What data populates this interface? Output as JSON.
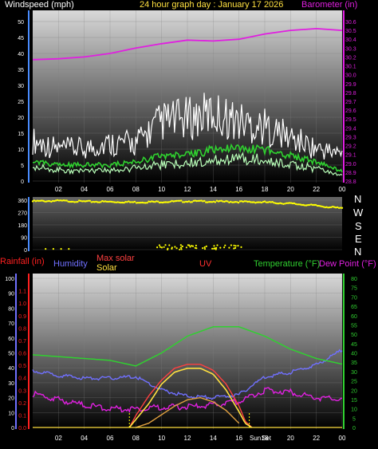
{
  "header": {
    "left": "Windspeed (mph)",
    "center": "24 hour graph day : January 17 2026",
    "right": "Barometer (in)"
  },
  "colors": {
    "wind_avg": "#2fd02f",
    "wind_gust": "#ffffff",
    "wind_light": "#b8ffb8",
    "barometer": "#e01fe0",
    "direction": "#ffff00",
    "rainfall": "#ff2020",
    "humidity": "#7070ff",
    "max_solar": "#ff4040",
    "solar": "#ffe040",
    "uv": "#ff3030",
    "temperature": "#30d030",
    "dewpoint": "#e020e0",
    "sun_marker": "#ffff00",
    "axis": "#4a8cff"
  },
  "direction_labels": [
    "N",
    "W",
    "S",
    "E",
    "N"
  ],
  "bottom_legend": {
    "rainfall": "Rainfall (in)",
    "humidity": "Humidity",
    "max_solar": "Max solar",
    "solar": "Solar",
    "uv": "UV",
    "temperature": "Temperature (°F)",
    "dewpoint": "Dew Point (°F)"
  },
  "sun_labels": {
    "rise": "Sun",
    "set": "Set"
  },
  "chart_data": [
    {
      "type": "line",
      "name": "wind-barometer",
      "x_ticks": [
        "02",
        "04",
        "06",
        "08",
        "10",
        "12",
        "14",
        "16",
        "18",
        "20",
        "22",
        "00"
      ],
      "left_axis": {
        "ticks": [
          0,
          5,
          10,
          15,
          20,
          25,
          30,
          35,
          40,
          45,
          50
        ],
        "ylim": [
          0,
          50
        ]
      },
      "right_axis": {
        "ticks": [
          28.8,
          28.9,
          29.0,
          29.1,
          29.2,
          29.3,
          29.4,
          29.5,
          29.6,
          29.7,
          29.8,
          29.9,
          30.0,
          30.1,
          30.2,
          30.3,
          30.4,
          30.5,
          30.6
        ],
        "ylim": [
          28.8,
          30.6
        ]
      },
      "x_hours": [
        0,
        2,
        4,
        6,
        8,
        10,
        12,
        14,
        16,
        18,
        20,
        22,
        24
      ],
      "barometer": [
        30.17,
        30.18,
        30.2,
        30.24,
        30.3,
        30.35,
        30.39,
        30.38,
        30.4,
        30.46,
        30.5,
        30.52,
        30.5
      ],
      "wind_avg": [
        6,
        5,
        5,
        5,
        6,
        8,
        8,
        10,
        10,
        10,
        8,
        6,
        3
      ],
      "wind_gust": [
        15,
        12,
        12,
        14,
        14,
        22,
        23,
        25,
        22,
        20,
        16,
        12,
        10
      ]
    },
    {
      "type": "scatter",
      "name": "wind-direction",
      "y_ticks": [
        0,
        90,
        180,
        270,
        360
      ],
      "ylim": [
        0,
        360
      ],
      "direction_hours": [
        0,
        2,
        4,
        6,
        8,
        10,
        12,
        14,
        16,
        18,
        20,
        22,
        24
      ],
      "direction_degrees": [
        352,
        355,
        350,
        348,
        345,
        348,
        352,
        350,
        348,
        345,
        335,
        320,
        300
      ]
    },
    {
      "type": "line",
      "name": "rain-humidity-solar-temp",
      "x_ticks": [
        "02",
        "04",
        "06",
        "08",
        "10",
        "12",
        "14",
        "16",
        "18",
        "20",
        "22",
        "00"
      ],
      "rain_axis": {
        "ticks": [
          0,
          0.1,
          0.2,
          0.3,
          0.4,
          0.5,
          0.6,
          0.7,
          0.8,
          0.9,
          1.0,
          1.1
        ],
        "ylim": [
          0,
          1.2
        ]
      },
      "humidity_axis": {
        "ticks": [
          0,
          10,
          20,
          30,
          40,
          50,
          60,
          70,
          80,
          90,
          100
        ],
        "ylim": [
          0,
          100
        ]
      },
      "temp_axis": {
        "ticks": [
          0,
          5,
          10,
          15,
          20,
          25,
          30,
          35,
          40,
          45,
          50,
          55,
          60,
          65,
          70,
          75,
          80
        ],
        "ylim": [
          0,
          80
        ]
      },
      "x_hours": [
        0,
        2,
        4,
        6,
        8,
        10,
        12,
        14,
        16,
        18,
        20,
        22,
        24
      ],
      "temperature": [
        39,
        38,
        37,
        36,
        33,
        40,
        49,
        54,
        54,
        49,
        42,
        37,
        34
      ],
      "dewpoint": [
        18,
        15,
        12,
        10,
        10,
        11,
        11,
        12,
        14,
        20,
        19,
        16,
        15
      ],
      "humidity": [
        38,
        35,
        33,
        33,
        34,
        25,
        21,
        20,
        22,
        34,
        37,
        42,
        52
      ],
      "solar_hours": [
        7.5,
        8,
        9,
        10,
        11,
        12,
        13,
        14,
        15,
        16,
        16.5,
        17
      ],
      "solar": [
        0,
        20,
        60,
        110,
        140,
        150,
        150,
        135,
        95,
        40,
        10,
        0
      ],
      "max_solar": [
        0,
        30,
        80,
        120,
        150,
        160,
        160,
        145,
        110,
        55,
        15,
        0
      ],
      "uv_hours": [
        8,
        9,
        10,
        11,
        12,
        13,
        14,
        15,
        16
      ],
      "uv": [
        0,
        0.2,
        0.6,
        1.0,
        1.3,
        1.4,
        1.2,
        0.8,
        0.2
      ],
      "sunrise_hour": 7.5,
      "sunset_hour": 16.8
    }
  ]
}
